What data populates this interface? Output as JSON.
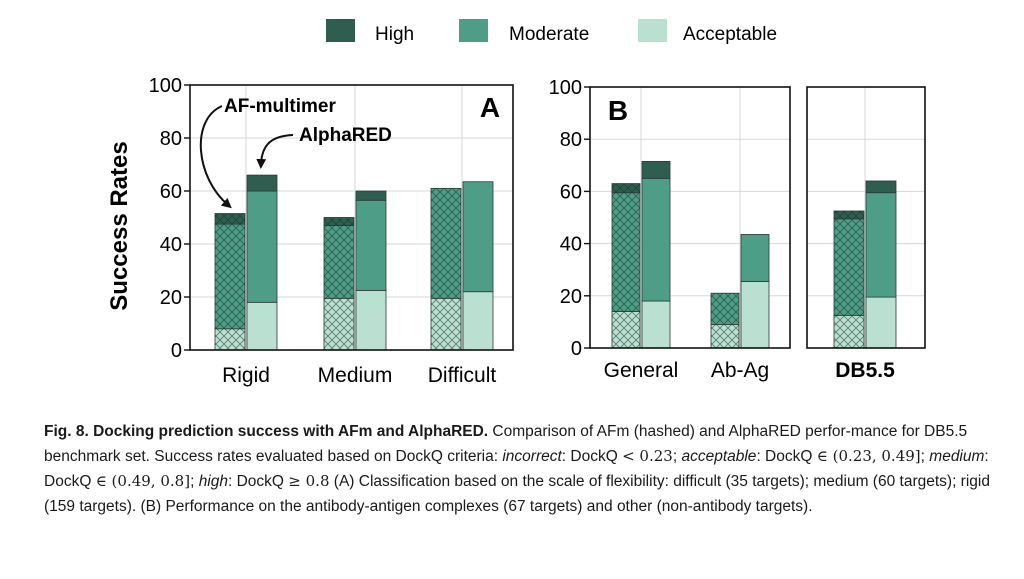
{
  "legend": [
    {
      "label": "High",
      "color": "#2d5e50"
    },
    {
      "label": "Moderate",
      "color": "#4e9e87"
    },
    {
      "label": "Acceptable",
      "color": "#b9e0d1"
    }
  ],
  "colors": {
    "high": "#2d5e50",
    "moderate": "#4e9e87",
    "acceptable": "#b9e0d1"
  },
  "chart_data": [
    {
      "type": "bar",
      "stacked": true,
      "panel_label": "A",
      "ylabel": "Success Rates",
      "ylim": [
        0,
        100
      ],
      "yticks": [
        0,
        20,
        40,
        60,
        80,
        100
      ],
      "grid": true,
      "categories": [
        "Rigid",
        "Medium",
        "Difficult"
      ],
      "series": [
        {
          "method": "AF-multimer",
          "hatched": true,
          "acceptable": [
            8,
            19.5,
            19.5
          ],
          "moderate": [
            39.5,
            27.5,
            41.5
          ],
          "high": [
            4,
            3,
            0
          ]
        },
        {
          "method": "AlphaRED",
          "hatched": false,
          "acceptable": [
            18,
            22.5,
            22
          ],
          "moderate": [
            42,
            34,
            41.5
          ],
          "high": [
            6,
            3.5,
            0
          ]
        }
      ],
      "annotations": [
        "AF-multimer",
        "AlphaRED"
      ]
    },
    {
      "type": "bar",
      "stacked": true,
      "panel_label": "B",
      "ylim": [
        0,
        100
      ],
      "yticks": [
        0,
        20,
        40,
        60,
        80,
        100
      ],
      "grid": true,
      "categories": [
        "General",
        "Ab-Ag"
      ],
      "series": [
        {
          "method": "AF-multimer",
          "hatched": true,
          "acceptable": [
            14,
            9
          ],
          "moderate": [
            45.5,
            12
          ],
          "high": [
            3.5,
            0
          ]
        },
        {
          "method": "AlphaRED",
          "hatched": false,
          "acceptable": [
            18,
            25.5
          ],
          "moderate": [
            47,
            18
          ],
          "high": [
            6.5,
            0
          ]
        }
      ]
    },
    {
      "type": "bar",
      "stacked": true,
      "ylim": [
        0,
        100
      ],
      "grid": true,
      "categories": [
        "DB5.5"
      ],
      "series": [
        {
          "method": "AF-multimer",
          "hatched": true,
          "acceptable": [
            12.5
          ],
          "moderate": [
            37
          ],
          "high": [
            3
          ]
        },
        {
          "method": "AlphaRED",
          "hatched": false,
          "acceptable": [
            19.5
          ],
          "moderate": [
            40
          ],
          "high": [
            4.5
          ]
        }
      ]
    }
  ],
  "caption": {
    "title": "Fig. 8. Docking prediction success with AFm and AlphaRED.",
    "p1": " Comparison of AFm (hashed) and AlphaRED perfor-mance for DB5.5 benchmark set. Success rates evaluated based on DockQ criteria: ",
    "incorrect": "incorrect",
    "p2": ": DockQ ",
    "m1": "< 0.23",
    "p3": "; ",
    "acceptable": "acceptable",
    "p4": ": DockQ ",
    "m2": "∈ (0.23, 0.49]",
    "p5": "; ",
    "medium": "medium",
    "p6": ": DockQ ",
    "m3": "∈ (0.49, 0.8]",
    "p7": "; ",
    "high": "high",
    "p8": ": DockQ ",
    "m4": "≥  0.8",
    "p9": " (A) Classification based on the scale of flexibility: difficult (35 targets); medium (60 targets); rigid (159 targets). (B) Performance on the antibody-antigen complexes (67 targets) and other (non-antibody targets)."
  }
}
